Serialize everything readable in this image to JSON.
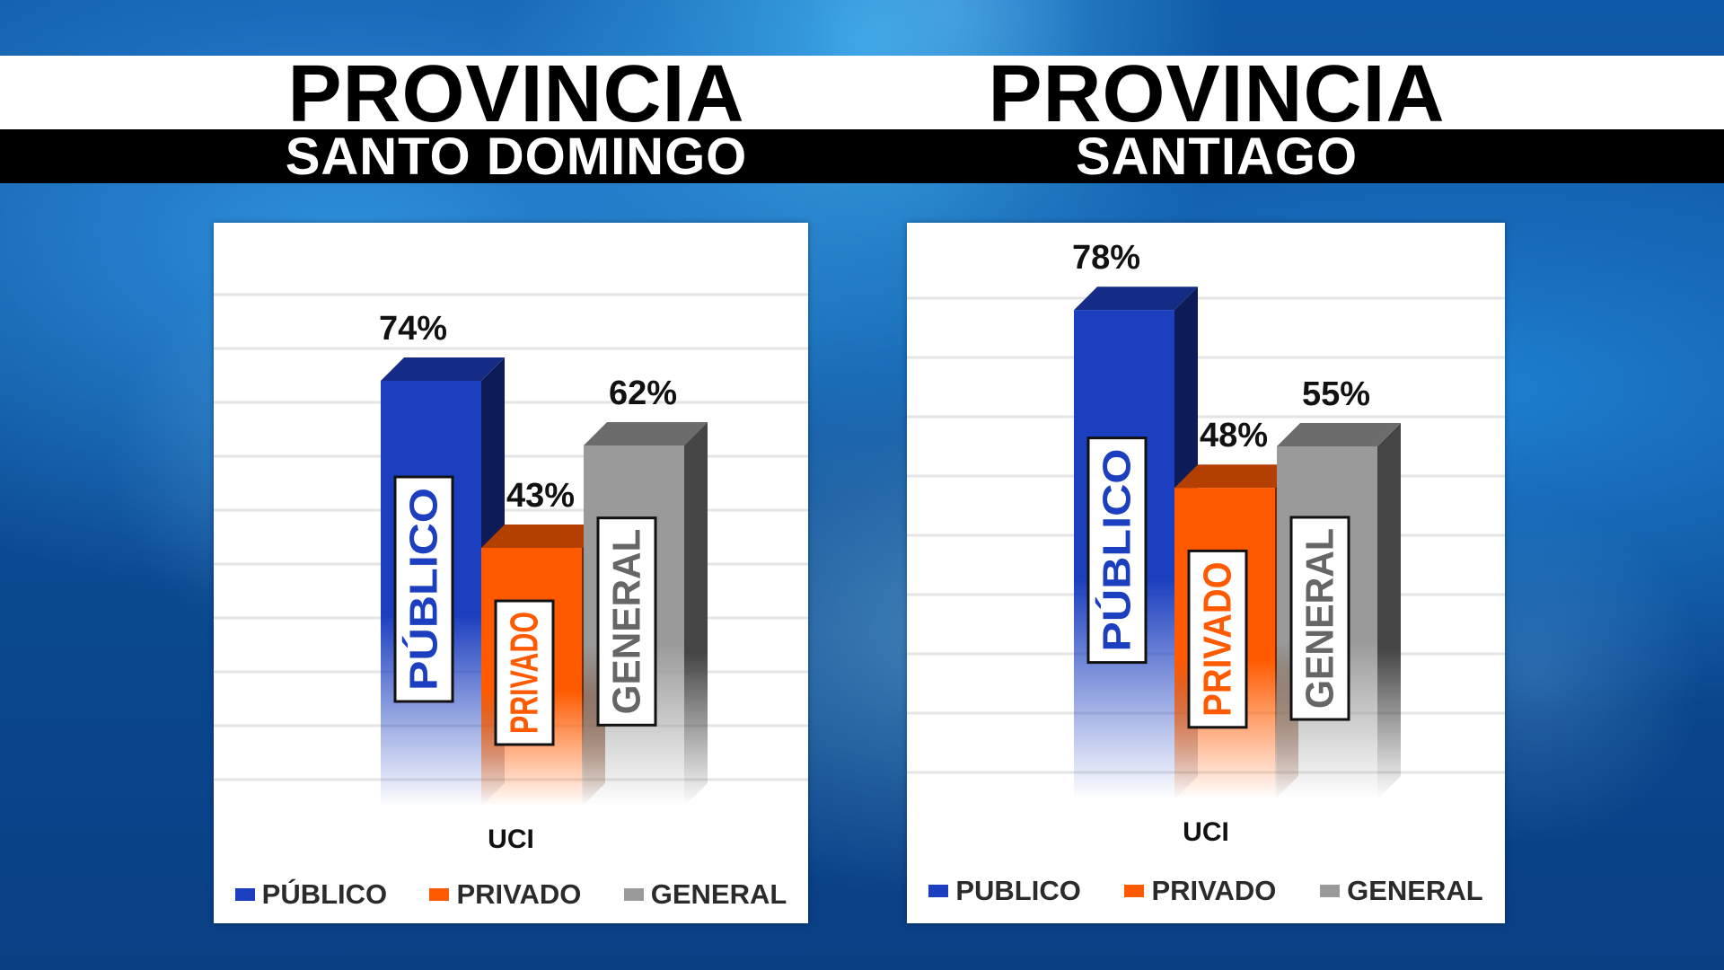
{
  "headings": {
    "left_title": "PROVINCIA",
    "left_subtitle": "SANTO DOMINGO",
    "right_title": "PROVINCIA",
    "right_subtitle": "SANTIAGO"
  },
  "colors": {
    "publico": "#1c3fbf",
    "privado": "#ff5a00",
    "general": "#9a9a9a"
  },
  "chart_data": [
    {
      "type": "bar",
      "categories": [
        "UCI"
      ],
      "series": [
        {
          "name": "PÚBLICO",
          "values": [
            74
          ],
          "label": "74%",
          "bar_text": "PÚBLICO"
        },
        {
          "name": "PRIVADO",
          "values": [
            43
          ],
          "label": "43%",
          "bar_text": "PRIVADO"
        },
        {
          "name": "GENERAL",
          "values": [
            62
          ],
          "label": "62%",
          "bar_text": "GENERAL"
        }
      ],
      "xlabel": "UCI",
      "ylim": [
        0,
        100
      ],
      "grid": true,
      "legend": "bottom"
    },
    {
      "type": "bar",
      "categories": [
        "UCI"
      ],
      "series": [
        {
          "name": "PUBLICO",
          "values": [
            78
          ],
          "label": "78%",
          "bar_text": "PÚBLICO"
        },
        {
          "name": "PRIVADO",
          "values": [
            48
          ],
          "label": "48%",
          "bar_text": "PRIVADO"
        },
        {
          "name": "GENERAL",
          "values": [
            55
          ],
          "label": "55%",
          "bar_text": "GENERAL"
        }
      ],
      "xlabel": "UCI",
      "ylim": [
        0,
        100
      ],
      "grid": true,
      "legend": "bottom"
    }
  ]
}
